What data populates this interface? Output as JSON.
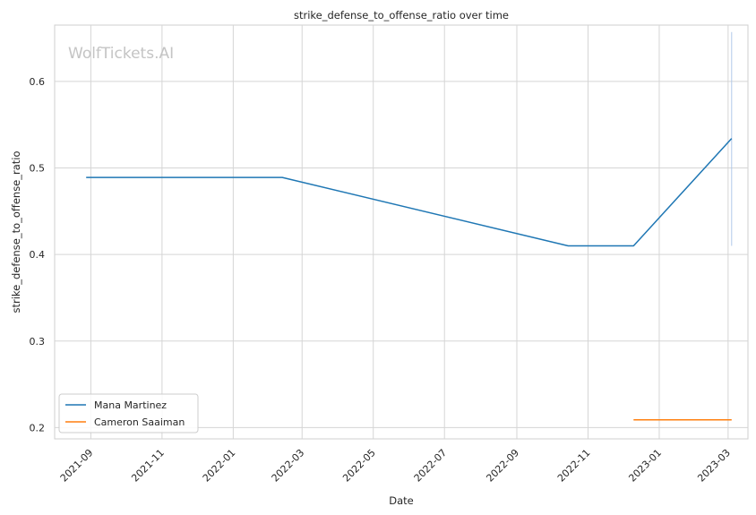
{
  "chart_data": {
    "type": "line",
    "title": "strike_defense_to_offense_ratio over time",
    "xlabel": "Date",
    "ylabel": "strike_defense_to_offense_ratio",
    "watermark": "WolfTickets.AI",
    "x_ticks": [
      "2021-09",
      "2021-11",
      "2022-01",
      "2022-03",
      "2022-05",
      "2022-07",
      "2022-09",
      "2022-11",
      "2023-01",
      "2023-03"
    ],
    "y_ticks": [
      "0.2",
      "0.3",
      "0.4",
      "0.5",
      "0.6"
    ],
    "xlim": [
      "2021-08-01",
      "2023-03-18"
    ],
    "ylim": [
      0.187,
      0.665
    ],
    "grid": true,
    "legend_position": "lower-left",
    "series": [
      {
        "name": "Mana Martinez",
        "color": "#1f77b4",
        "x": [
          "2021-08-28",
          "2022-02-12",
          "2022-10-15",
          "2022-12-10",
          "2023-03-04"
        ],
        "y": [
          0.489,
          0.489,
          0.41,
          0.41,
          0.534
        ]
      },
      {
        "name": "Cameron Saaiman",
        "color": "#ff7f0e",
        "x": [
          "2022-12-10",
          "2023-03-04"
        ],
        "y": [
          0.209,
          0.209
        ]
      }
    ],
    "vertical_band": {
      "x": "2023-03-04",
      "y_from": 0.41,
      "y_to": 0.657,
      "color": "#aec7e8"
    }
  }
}
